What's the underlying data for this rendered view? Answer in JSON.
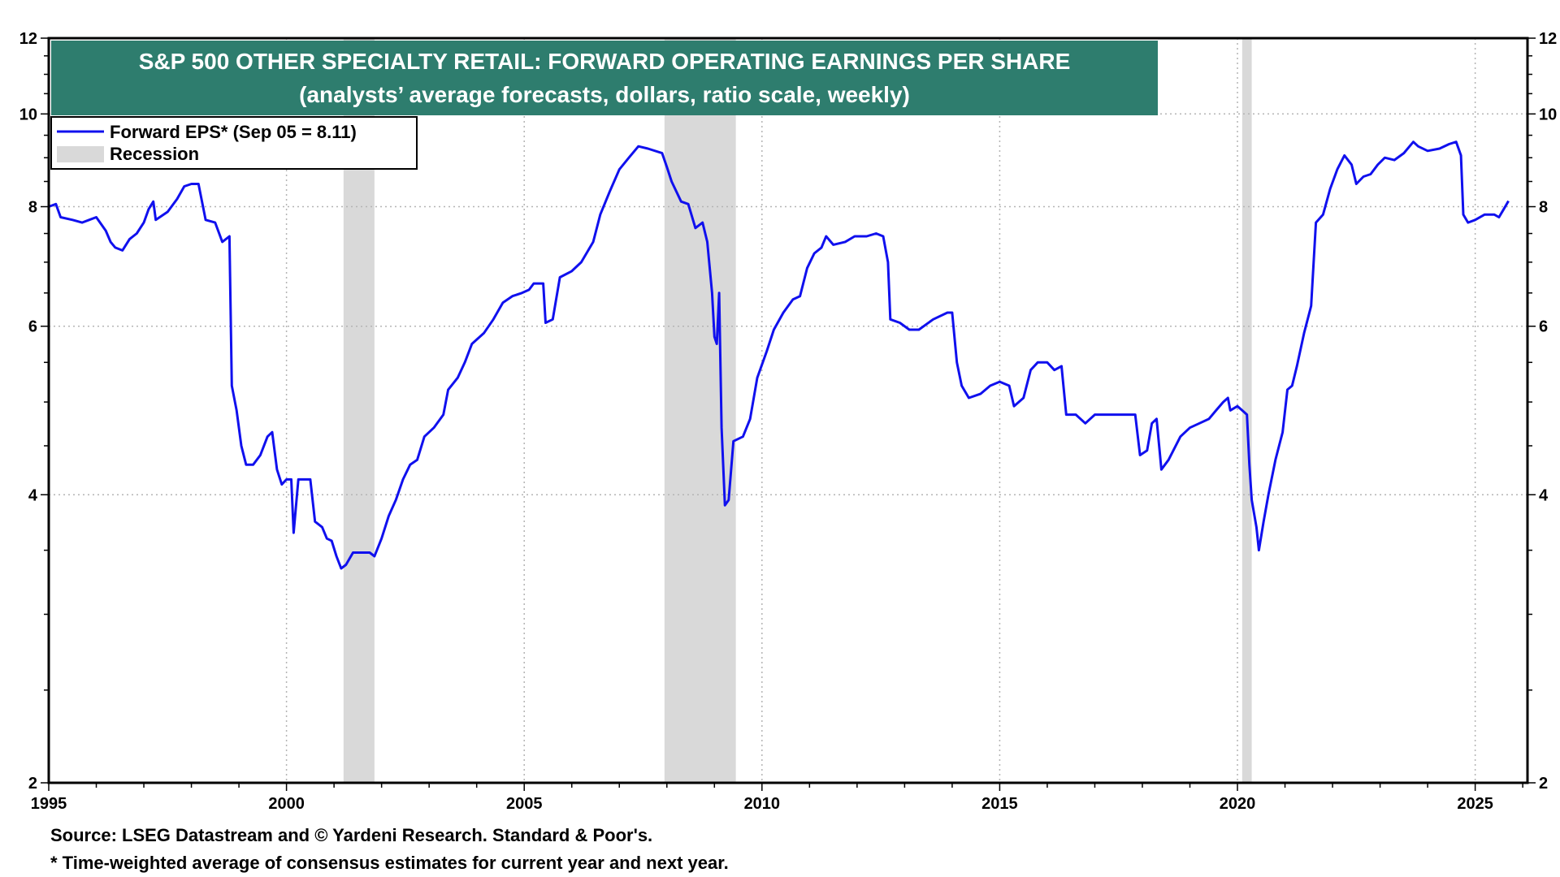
{
  "chart_data": {
    "type": "line",
    "title": "S&P 500 OTHER SPECIALTY RETAIL: FORWARD OPERATING EARNINGS PER SHARE",
    "subtitle": "(analysts’ average forecasts, dollars, ratio scale, weekly)",
    "xlabel": "",
    "ylabel": "",
    "scale": "log",
    "xlim": [
      1995,
      2026.1
    ],
    "ylim": [
      2,
      12
    ],
    "x_ticks": [
      1995,
      2000,
      2005,
      2010,
      2015,
      2020,
      2025
    ],
    "y_ticks": [
      2,
      4,
      6,
      8,
      10,
      12
    ],
    "grid": true,
    "legend_position": "top-left",
    "legend": {
      "series_label": "Forward EPS* (Sep 05 = 8.11)",
      "recession_label": "Recession"
    },
    "colors": {
      "series": "#1010ee",
      "recession": "#d9d9d9",
      "title_bg": "#2e7d6e",
      "grid": "#b4b4b4"
    },
    "recessions": [
      [
        2001.2,
        2001.85
      ],
      [
        2007.95,
        2009.45
      ],
      [
        2020.1,
        2020.3
      ]
    ],
    "series": [
      {
        "name": "Forward EPS* (Sep 05 = 8.11)",
        "points": [
          [
            1995.0,
            8.0
          ],
          [
            1995.15,
            8.05
          ],
          [
            1995.25,
            7.8
          ],
          [
            1995.5,
            7.75
          ],
          [
            1995.7,
            7.7
          ],
          [
            1995.85,
            7.75
          ],
          [
            1996.0,
            7.8
          ],
          [
            1996.2,
            7.55
          ],
          [
            1996.3,
            7.35
          ],
          [
            1996.4,
            7.25
          ],
          [
            1996.55,
            7.2
          ],
          [
            1996.7,
            7.4
          ],
          [
            1996.85,
            7.5
          ],
          [
            1997.0,
            7.7
          ],
          [
            1997.1,
            7.95
          ],
          [
            1997.2,
            8.1
          ],
          [
            1997.25,
            7.75
          ],
          [
            1997.5,
            7.9
          ],
          [
            1997.7,
            8.15
          ],
          [
            1997.85,
            8.4
          ],
          [
            1998.0,
            8.45
          ],
          [
            1998.15,
            8.45
          ],
          [
            1998.3,
            7.75
          ],
          [
            1998.5,
            7.7
          ],
          [
            1998.65,
            7.35
          ],
          [
            1998.8,
            7.45
          ],
          [
            1998.85,
            5.2
          ],
          [
            1998.95,
            4.9
          ],
          [
            1999.05,
            4.5
          ],
          [
            1999.15,
            4.3
          ],
          [
            1999.3,
            4.3
          ],
          [
            1999.45,
            4.4
          ],
          [
            1999.6,
            4.6
          ],
          [
            1999.7,
            4.65
          ],
          [
            1999.8,
            4.25
          ],
          [
            1999.9,
            4.1
          ],
          [
            2000.0,
            4.15
          ],
          [
            2000.1,
            4.15
          ],
          [
            2000.15,
            3.65
          ],
          [
            2000.25,
            4.15
          ],
          [
            2000.35,
            4.15
          ],
          [
            2000.5,
            4.15
          ],
          [
            2000.6,
            3.75
          ],
          [
            2000.75,
            3.7
          ],
          [
            2000.85,
            3.6
          ],
          [
            2000.95,
            3.58
          ],
          [
            2001.05,
            3.45
          ],
          [
            2001.15,
            3.35
          ],
          [
            2001.25,
            3.38
          ],
          [
            2001.4,
            3.48
          ],
          [
            2001.6,
            3.48
          ],
          [
            2001.75,
            3.48
          ],
          [
            2001.85,
            3.45
          ],
          [
            2002.0,
            3.6
          ],
          [
            2002.15,
            3.8
          ],
          [
            2002.3,
            3.95
          ],
          [
            2002.45,
            4.15
          ],
          [
            2002.6,
            4.3
          ],
          [
            2002.75,
            4.35
          ],
          [
            2002.9,
            4.6
          ],
          [
            2003.1,
            4.7
          ],
          [
            2003.3,
            4.85
          ],
          [
            2003.4,
            5.15
          ],
          [
            2003.6,
            5.3
          ],
          [
            2003.75,
            5.5
          ],
          [
            2003.9,
            5.75
          ],
          [
            2004.15,
            5.9
          ],
          [
            2004.35,
            6.1
          ],
          [
            2004.55,
            6.35
          ],
          [
            2004.75,
            6.45
          ],
          [
            2004.95,
            6.5
          ],
          [
            2005.1,
            6.55
          ],
          [
            2005.2,
            6.65
          ],
          [
            2005.4,
            6.65
          ],
          [
            2005.45,
            6.05
          ],
          [
            2005.6,
            6.1
          ],
          [
            2005.75,
            6.75
          ],
          [
            2006.0,
            6.85
          ],
          [
            2006.2,
            7.0
          ],
          [
            2006.45,
            7.35
          ],
          [
            2006.6,
            7.85
          ],
          [
            2006.8,
            8.3
          ],
          [
            2007.0,
            8.75
          ],
          [
            2007.2,
            9.0
          ],
          [
            2007.4,
            9.25
          ],
          [
            2007.6,
            9.2
          ],
          [
            2007.9,
            9.1
          ],
          [
            2008.0,
            8.8
          ],
          [
            2008.1,
            8.5
          ],
          [
            2008.3,
            8.1
          ],
          [
            2008.45,
            8.05
          ],
          [
            2008.6,
            7.6
          ],
          [
            2008.75,
            7.7
          ],
          [
            2008.85,
            7.35
          ],
          [
            2008.95,
            6.5
          ],
          [
            2009.0,
            5.85
          ],
          [
            2009.05,
            5.75
          ],
          [
            2009.1,
            6.5
          ],
          [
            2009.15,
            4.7
          ],
          [
            2009.22,
            3.9
          ],
          [
            2009.3,
            3.95
          ],
          [
            2009.4,
            4.55
          ],
          [
            2009.6,
            4.6
          ],
          [
            2009.75,
            4.8
          ],
          [
            2009.9,
            5.3
          ],
          [
            2010.1,
            5.65
          ],
          [
            2010.25,
            5.95
          ],
          [
            2010.45,
            6.2
          ],
          [
            2010.65,
            6.4
          ],
          [
            2010.8,
            6.45
          ],
          [
            2010.95,
            6.9
          ],
          [
            2011.1,
            7.15
          ],
          [
            2011.25,
            7.25
          ],
          [
            2011.35,
            7.45
          ],
          [
            2011.5,
            7.3
          ],
          [
            2011.75,
            7.35
          ],
          [
            2011.95,
            7.45
          ],
          [
            2012.2,
            7.45
          ],
          [
            2012.4,
            7.5
          ],
          [
            2012.55,
            7.45
          ],
          [
            2012.65,
            7.0
          ],
          [
            2012.7,
            6.1
          ],
          [
            2012.9,
            6.05
          ],
          [
            2013.1,
            5.95
          ],
          [
            2013.3,
            5.95
          ],
          [
            2013.6,
            6.1
          ],
          [
            2013.9,
            6.2
          ],
          [
            2014.0,
            6.2
          ],
          [
            2014.1,
            5.5
          ],
          [
            2014.2,
            5.2
          ],
          [
            2014.35,
            5.05
          ],
          [
            2014.6,
            5.1
          ],
          [
            2014.8,
            5.2
          ],
          [
            2015.0,
            5.25
          ],
          [
            2015.2,
            5.2
          ],
          [
            2015.3,
            4.95
          ],
          [
            2015.5,
            5.05
          ],
          [
            2015.65,
            5.4
          ],
          [
            2015.8,
            5.5
          ],
          [
            2016.0,
            5.5
          ],
          [
            2016.15,
            5.4
          ],
          [
            2016.3,
            5.45
          ],
          [
            2016.4,
            4.85
          ],
          [
            2016.6,
            4.85
          ],
          [
            2016.8,
            4.75
          ],
          [
            2017.0,
            4.85
          ],
          [
            2017.3,
            4.85
          ],
          [
            2017.6,
            4.85
          ],
          [
            2017.75,
            4.85
          ],
          [
            2017.85,
            4.85
          ],
          [
            2017.95,
            4.4
          ],
          [
            2018.1,
            4.45
          ],
          [
            2018.2,
            4.75
          ],
          [
            2018.3,
            4.8
          ],
          [
            2018.4,
            4.25
          ],
          [
            2018.55,
            4.35
          ],
          [
            2018.8,
            4.6
          ],
          [
            2019.0,
            4.7
          ],
          [
            2019.2,
            4.75
          ],
          [
            2019.4,
            4.8
          ],
          [
            2019.55,
            4.9
          ],
          [
            2019.7,
            5.0
          ],
          [
            2019.8,
            5.05
          ],
          [
            2019.85,
            4.9
          ],
          [
            2020.0,
            4.95
          ],
          [
            2020.1,
            4.9
          ],
          [
            2020.2,
            4.85
          ],
          [
            2020.25,
            4.3
          ],
          [
            2020.3,
            3.95
          ],
          [
            2020.4,
            3.7
          ],
          [
            2020.45,
            3.5
          ],
          [
            2020.55,
            3.75
          ],
          [
            2020.65,
            4.0
          ],
          [
            2020.8,
            4.35
          ],
          [
            2020.95,
            4.65
          ],
          [
            2021.05,
            5.15
          ],
          [
            2021.15,
            5.2
          ],
          [
            2021.25,
            5.45
          ],
          [
            2021.4,
            5.9
          ],
          [
            2021.55,
            6.3
          ],
          [
            2021.65,
            7.7
          ],
          [
            2021.8,
            7.85
          ],
          [
            2021.95,
            8.35
          ],
          [
            2022.1,
            8.75
          ],
          [
            2022.25,
            9.05
          ],
          [
            2022.4,
            8.85
          ],
          [
            2022.5,
            8.45
          ],
          [
            2022.65,
            8.6
          ],
          [
            2022.8,
            8.65
          ],
          [
            2022.95,
            8.85
          ],
          [
            2023.1,
            9.0
          ],
          [
            2023.3,
            8.95
          ],
          [
            2023.5,
            9.1
          ],
          [
            2023.7,
            9.35
          ],
          [
            2023.8,
            9.25
          ],
          [
            2024.0,
            9.15
          ],
          [
            2024.25,
            9.2
          ],
          [
            2024.45,
            9.3
          ],
          [
            2024.6,
            9.35
          ],
          [
            2024.7,
            9.05
          ],
          [
            2024.75,
            7.85
          ],
          [
            2024.85,
            7.7
          ],
          [
            2025.0,
            7.75
          ],
          [
            2025.2,
            7.85
          ],
          [
            2025.4,
            7.85
          ],
          [
            2025.5,
            7.8
          ],
          [
            2025.6,
            7.95
          ],
          [
            2025.7,
            8.11
          ]
        ]
      }
    ],
    "source": "Source: LSEG Datastream and © Yardeni Research. Standard & Poor's.",
    "footnote": "* Time-weighted average of consensus estimates for current year and next year."
  }
}
